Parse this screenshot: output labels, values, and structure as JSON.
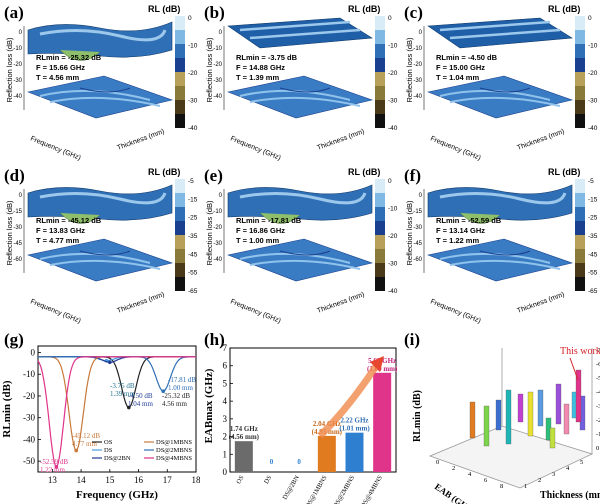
{
  "panels_3d": [
    {
      "label": "(a)",
      "rl_title": "RL (dB)",
      "ylabel": "Reflection loss (dB)",
      "xlabel": "Frequency (GHz)",
      "tlabel": "Thickness (mm)",
      "stat1": "RLmin = -25.32 dB",
      "stat2": "F = 15.66 GHz",
      "stat3": "T = 4.56 mm",
      "ticks": [
        "0",
        "-10",
        "-20",
        "-30",
        "-40"
      ],
      "bar_ticks": [
        "0",
        "-10",
        "-20",
        "-30",
        "-40"
      ],
      "flat": false
    },
    {
      "label": "(b)",
      "rl_title": "RL (dB)",
      "ylabel": "Reflection loss (dB)",
      "xlabel": "Frequency (GHz)",
      "tlabel": "Thickness (mm)",
      "stat1": "RLmin = -3.75 dB",
      "stat2": "F = 14.88 GHz",
      "stat3": "T = 1.39 mm",
      "ticks": [
        "0",
        "-10",
        "-20",
        "-30",
        "-40"
      ],
      "bar_ticks": [
        "0",
        "-10",
        "-20",
        "-30",
        "-40"
      ],
      "flat": true
    },
    {
      "label": "(c)",
      "rl_title": "RL (dB)",
      "ylabel": "Reflection loss (dB)",
      "xlabel": "Frequency (GHz)",
      "tlabel": "Thickness (mm)",
      "stat1": "RLmin = -4.50 dB",
      "stat2": "F = 15.00 GHz",
      "stat3": "T = 1.04 mm",
      "ticks": [
        "0",
        "-10",
        "-20",
        "-30",
        "-40"
      ],
      "bar_ticks": [
        "0",
        "-10",
        "-20",
        "-30",
        "-40"
      ],
      "flat": true
    },
    {
      "label": "(d)",
      "rl_title": "RL (dB)",
      "ylabel": "Reflection loss (dB)",
      "xlabel": "Frequency (GHz)",
      "tlabel": "Thickness (mm)",
      "stat1": "RLmin = -45.12 dB",
      "stat2": "F = 13.83 GHz",
      "stat3": "T = 4.77 mm",
      "ticks": [
        "0",
        "-15",
        "-30",
        "-45",
        "-60"
      ],
      "bar_ticks": [
        "-5",
        "-15",
        "-25",
        "-35",
        "-45",
        "-55",
        "-65"
      ],
      "flat": false
    },
    {
      "label": "(e)",
      "rl_title": "RL (dB)",
      "ylabel": "Reflection loss (dB)",
      "xlabel": "Frequency (GHz)",
      "tlabel": "Thickness (mm)",
      "stat1": "RLmin = -17.81 dB",
      "stat2": "F = 16.86 GHz",
      "stat3": "T = 1.00 mm",
      "ticks": [
        "0",
        "-10",
        "-20",
        "-30",
        "-40"
      ],
      "bar_ticks": [
        "0",
        "-10",
        "-20",
        "-30",
        "-40"
      ],
      "flat": false
    },
    {
      "label": "(f)",
      "rl_title": "RL (dB)",
      "ylabel": "Reflection loss (dB)",
      "xlabel": "Frequency (GHz)",
      "tlabel": "Thickness (mm)",
      "stat1": "RLmin = -52.59 dB",
      "stat2": "F = 13.14 GHz",
      "stat3": "T = 1.22 mm",
      "ticks": [
        "0",
        "-15",
        "-30",
        "-45",
        "-60"
      ],
      "bar_ticks": [
        "-5",
        "-15",
        "-25",
        "-35",
        "-45",
        "-55",
        "-65"
      ],
      "flat": false
    }
  ],
  "chart_data": [
    {
      "type": "line",
      "label": "(g)",
      "xlabel": "Frequency (GHz)",
      "ylabel": "RLmin (dB)",
      "x_ticks": [
        "13",
        "14",
        "15",
        "16",
        "17",
        "18"
      ],
      "y_ticks": [
        "0",
        "-10",
        "-20",
        "-30",
        "-40",
        "-50"
      ],
      "xlim": [
        12.5,
        18
      ],
      "ylim": [
        -55,
        3
      ],
      "series": [
        {
          "name": "OS",
          "color": "#222222",
          "min_x": 15.66,
          "min_y": -25.32
        },
        {
          "name": "DS",
          "color": "#4a9be0",
          "min_x": 14.88,
          "min_y": -3.75
        },
        {
          "name": "DS@2BN",
          "color": "#1f3a93",
          "min_x": 15.0,
          "min_y": -4.5
        },
        {
          "name": "DS@1MBNS",
          "color": "#c8793a",
          "min_x": 13.83,
          "min_y": -45.12
        },
        {
          "name": "DS@2MBNS",
          "color": "#2f6fb5",
          "min_x": 16.86,
          "min_y": -17.81
        },
        {
          "name": "DS@4MBNS",
          "color": "#e0338a",
          "min_x": 13.14,
          "min_y": -52.59
        }
      ],
      "annotations": [
        {
          "text1": "-3.75 dB",
          "text2": "1.39 mm",
          "color": "#1f6f8b"
        },
        {
          "text1": "-4.50 dB",
          "text2": "1.04 mm",
          "color": "#1f3a93"
        },
        {
          "text1": "-25.32 dB",
          "text2": "4.56 mm",
          "color": "#222222"
        },
        {
          "text1": "-17.81 dB",
          "text2": "1.00 mm",
          "color": "#2f6fb5"
        },
        {
          "text1": "-45.12 dB",
          "text2": "4.77 mm",
          "color": "#c8793a"
        },
        {
          "text1": "-52.59 dB",
          "text2": "1.22 mm",
          "color": "#e0338a"
        }
      ]
    },
    {
      "type": "bar",
      "label": "(h)",
      "ylabel": "EABmax (GHz)",
      "categories": [
        "OS",
        "DS",
        "DS@2BN",
        "DS@1MBNS",
        "DS@2MBNS",
        "DS@4MBNS"
      ],
      "values": [
        1.74,
        0,
        0,
        2.04,
        2.22,
        5.6
      ],
      "ylim": [
        0,
        7
      ],
      "y_ticks": [
        "0",
        "1",
        "2",
        "3",
        "4",
        "5",
        "6",
        "7"
      ],
      "colors": [
        "#6b6b6b",
        "#6b6b6b",
        "#6b6b6b",
        "#e07b1f",
        "#2f7fd0",
        "#e0338a"
      ],
      "bar_labels": [
        [
          "1.74 GHz",
          "(4.56 mm)"
        ],
        [
          "0",
          ""
        ],
        [
          "0",
          ""
        ],
        [
          "2.04 GHz",
          "(4.93 mm)"
        ],
        [
          "2.22 GHz",
          "(1.01 mm)"
        ],
        [
          "5.60 GHz",
          "(1.09 mm)"
        ]
      ],
      "label_colors": [
        "#333333",
        "#2f7fd0",
        "#2f7fd0",
        "#c8691a",
        "#2f6fb5",
        "#c4207a"
      ]
    },
    {
      "type": "bar3d",
      "label": "(i)",
      "zlabel": "RLmin (dB)",
      "xlabel": "EAB (GHz)",
      "ylabel": "Thickness (mm)",
      "z_ticks": [
        "0",
        "-10",
        "-20",
        "-30",
        "-40",
        "-50",
        "-60",
        "-70"
      ],
      "x_ticks": [
        "0",
        "2",
        "4",
        "6",
        "8"
      ],
      "y_ticks": [
        "1",
        "2",
        "3",
        "4",
        "5"
      ],
      "annotation": "This work"
    }
  ]
}
